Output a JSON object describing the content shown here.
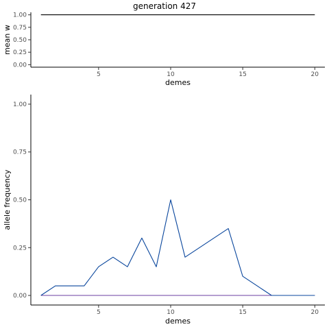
{
  "title": "generation 427",
  "chart_data": [
    {
      "type": "line",
      "xlabel": "demes",
      "ylabel": "mean w",
      "xlim": [
        0.3,
        20.7
      ],
      "ylim": [
        -0.05,
        1.05
      ],
      "xticks": [
        5,
        10,
        15,
        20
      ],
      "yticks": [
        0.0,
        0.25,
        0.5,
        0.75,
        1.0
      ],
      "ytick_labels": [
        "0.00",
        "0.25",
        "0.50",
        "0.75",
        "1.00"
      ],
      "grid": false,
      "series": [
        {
          "color": "#000000",
          "x": [
            1,
            2,
            3,
            4,
            5,
            6,
            7,
            8,
            9,
            10,
            11,
            12,
            13,
            14,
            15,
            16,
            17,
            18,
            19,
            20
          ],
          "y": [
            1,
            1,
            1,
            1,
            1,
            1,
            1,
            1,
            1,
            1,
            1,
            1,
            1,
            1,
            1,
            1,
            1,
            1,
            1,
            1
          ]
        }
      ]
    },
    {
      "type": "line",
      "xlabel": "demes",
      "ylabel": "allele frequency",
      "xlim": [
        0.3,
        20.7
      ],
      "ylim": [
        -0.05,
        1.05
      ],
      "xticks": [
        5,
        10,
        15,
        20
      ],
      "yticks": [
        0.0,
        0.25,
        0.5,
        0.75,
        1.0
      ],
      "ytick_labels": [
        "0.00",
        "0.25",
        "0.50",
        "0.75",
        "1.00"
      ],
      "grid": false,
      "series": [
        {
          "color": "#d62728",
          "x": [
            1,
            2,
            3,
            4,
            5,
            6,
            7,
            8,
            9,
            10,
            11,
            12,
            13,
            14,
            15,
            16,
            17,
            18,
            19,
            20
          ],
          "y": [
            0,
            0,
            0,
            0,
            0,
            0,
            0,
            0,
            0,
            0,
            0,
            0,
            0,
            0,
            0,
            0,
            0,
            0,
            0,
            0
          ]
        },
        {
          "color": "#6b3fa0",
          "x": [
            1,
            2,
            3,
            4,
            5,
            6,
            7,
            8,
            9,
            10,
            11,
            12,
            13,
            14,
            15,
            16,
            17,
            18,
            19,
            20
          ],
          "y": [
            0,
            0,
            0,
            0,
            0,
            0,
            0,
            0,
            0,
            0,
            0,
            0,
            0,
            0,
            0,
            0,
            0,
            0,
            0,
            0
          ]
        },
        {
          "color": "#08459c",
          "x": [
            1,
            2,
            3,
            4,
            5,
            6,
            7,
            8,
            9,
            10,
            11,
            12,
            13,
            14,
            15,
            16,
            17,
            18,
            19,
            20
          ],
          "y": [
            0,
            0.05,
            0.05,
            0.05,
            0.15,
            0.2,
            0.15,
            0.3,
            0.15,
            0.5,
            0.2,
            0.25,
            0.3,
            0.35,
            0.1,
            0.05,
            0,
            0,
            0,
            0
          ]
        }
      ]
    }
  ]
}
